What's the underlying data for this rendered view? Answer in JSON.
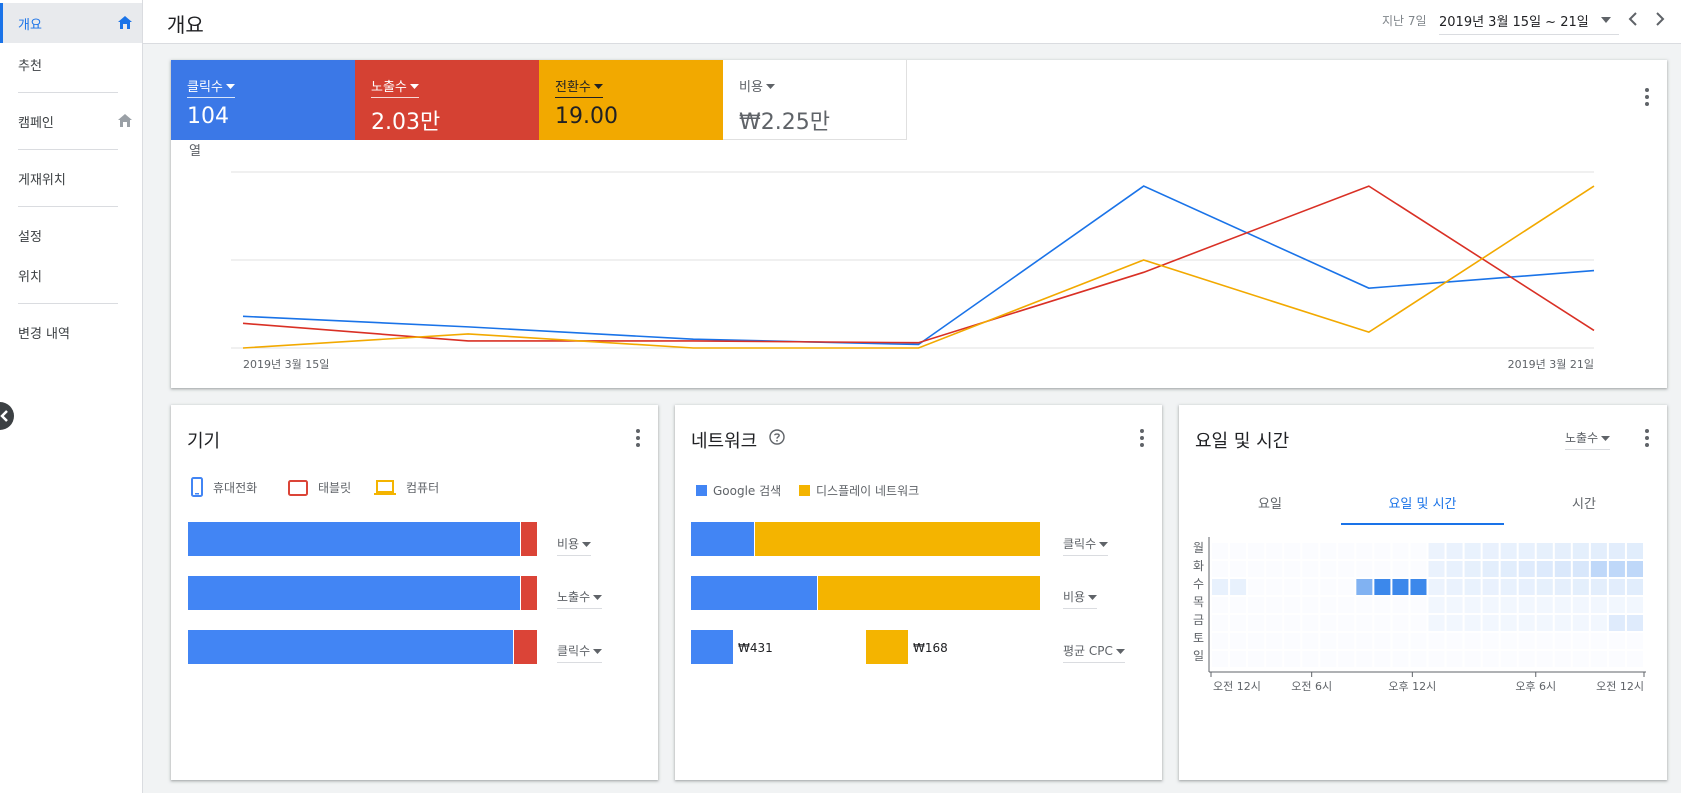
{
  "sidebar": {
    "items": [
      {
        "label": "개요"
      },
      {
        "label": "추천"
      },
      {
        "label": "캠페인"
      },
      {
        "label": "게재위치"
      },
      {
        "label": "설정"
      },
      {
        "label": "위치"
      },
      {
        "label": "변경 내역"
      }
    ]
  },
  "header": {
    "title": "개요",
    "date_label": "지난 7일",
    "date_range": "2019년 3월 15일 ~ 21일"
  },
  "metrics": [
    {
      "label": "클릭수",
      "value": "104",
      "color": "#3b78e7"
    },
    {
      "label": "노출수",
      "value": "2.03만",
      "color": "#d54133"
    },
    {
      "label": "전환수",
      "value": "19.00",
      "color": "#f2a900"
    },
    {
      "label": "비용",
      "value": "₩2.25만",
      "color": "#ffffff"
    }
  ],
  "chart_data": {
    "type": "line",
    "x": [
      "2019-03-15",
      "2019-03-16",
      "2019-03-17",
      "2019-03-18",
      "2019-03-19",
      "2019-03-20",
      "2019-03-21"
    ],
    "x_start_label": "2019년 3월 15일",
    "x_end_label": "2019년 3월 21일",
    "ylim": [
      0,
      1
    ],
    "grid": true,
    "series": [
      {
        "color": "#1a73e8",
        "values": [
          0.18,
          0.12,
          0.05,
          0.02,
          0.92,
          0.34,
          0.44
        ]
      },
      {
        "color": "#d93025",
        "values": [
          0.14,
          0.04,
          0.04,
          0.03,
          0.43,
          0.92,
          0.1
        ]
      },
      {
        "color": "#f2a900",
        "values": [
          0.0,
          0.08,
          0.0,
          0.0,
          0.5,
          0.09,
          0.92
        ]
      }
    ],
    "y_label_fragment": "열"
  },
  "devices": {
    "title": "기기",
    "legend": [
      "휴대전화",
      "태블릿",
      "컴퓨터"
    ],
    "rows": [
      {
        "dropdown": "비용",
        "phone": 0.95,
        "tablet": 0.05
      },
      {
        "dropdown": "노출수",
        "phone": 0.95,
        "tablet": 0.05
      },
      {
        "dropdown": "클릭수",
        "phone": 0.93,
        "tablet": 0.07
      }
    ],
    "colors": {
      "phone": "#4285f4",
      "tablet": "#db4437",
      "computer": "#f4b400"
    }
  },
  "network": {
    "title": "네트워크",
    "legend": [
      "Google 검색",
      "디스플레이 네트워크"
    ],
    "rows": [
      {
        "dropdown": "클릭수",
        "search": 0.18,
        "display": 0.82
      },
      {
        "dropdown": "비용",
        "search": 0.36,
        "display": 0.64
      }
    ],
    "cpc": {
      "dropdown": "평균 CPC",
      "search_value": "₩431",
      "display_value": "₩168"
    },
    "colors": {
      "search": "#4285f4",
      "display": "#f4b400"
    }
  },
  "dayhour": {
    "title": "요일 및 시간",
    "dropdown": "노출수",
    "tabs": [
      "요일",
      "요일 및 시간",
      "시간"
    ],
    "days": [
      "월",
      "화",
      "수",
      "목",
      "금",
      "토",
      "일"
    ],
    "x_ticks": [
      "오전 12시",
      "오전 6시",
      "오후 12시",
      "오후 6시",
      "오전 12시"
    ]
  }
}
